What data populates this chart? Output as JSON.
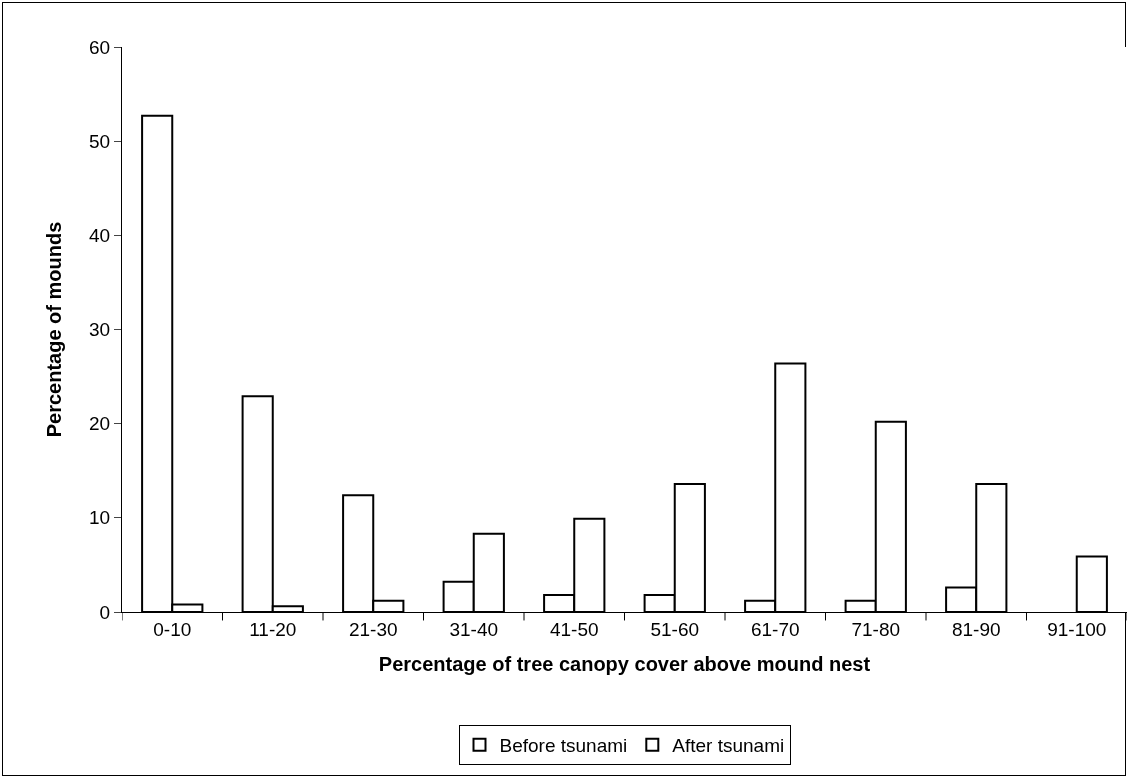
{
  "chart_data": {
    "type": "bar",
    "xlabel": "Percentage of tree canopy cover above mound nest",
    "ylabel": "Percentage of mounds",
    "categories": [
      "0-10",
      "11-20",
      "21-30",
      "31-40",
      "41-50",
      "51-60",
      "61-70",
      "71-80",
      "81-90",
      "91-100"
    ],
    "series": [
      {
        "name": "Before tsunami",
        "color": "#ffffff",
        "values": [
          52.7,
          22.9,
          12.4,
          3.2,
          1.8,
          1.8,
          1.2,
          1.2,
          2.6,
          null
        ]
      },
      {
        "name": "After tsunami",
        "color": "#ffffff",
        "values": [
          0.8,
          0.6,
          1.2,
          8.3,
          9.9,
          13.6,
          26.4,
          20.2,
          13.6,
          5.9
        ]
      }
    ],
    "ylim": [
      0,
      60
    ],
    "yticks": [
      0,
      10,
      20,
      30,
      40,
      50,
      60
    ],
    "grid": false,
    "legend": "bottom"
  }
}
